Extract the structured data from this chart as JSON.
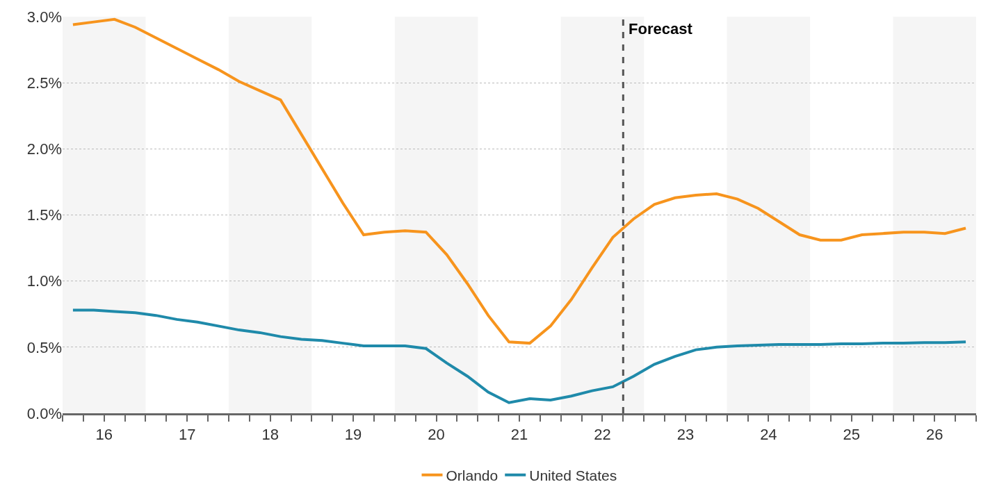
{
  "chart_data": {
    "type": "line",
    "x": [
      15.625,
      15.875,
      16.125,
      16.375,
      16.625,
      16.875,
      17.125,
      17.375,
      17.625,
      17.875,
      18.125,
      18.375,
      18.625,
      18.875,
      19.125,
      19.375,
      19.625,
      19.875,
      20.125,
      20.375,
      20.625,
      20.875,
      21.125,
      21.375,
      21.625,
      21.875,
      22.125,
      22.375,
      22.625,
      22.875,
      23.125,
      23.375,
      23.625,
      23.875,
      24.125,
      24.375,
      24.625,
      24.875,
      25.125,
      25.375,
      25.625,
      25.875,
      26.125,
      26.375
    ],
    "series": [
      {
        "name": "Orlando",
        "color": "#f7941d",
        "values": [
          2.94,
          2.96,
          2.98,
          2.92,
          2.84,
          2.76,
          2.68,
          2.6,
          2.51,
          2.44,
          2.37,
          2.11,
          1.85,
          1.59,
          1.35,
          1.37,
          1.38,
          1.37,
          1.2,
          0.98,
          0.74,
          0.54,
          0.53,
          0.66,
          0.86,
          1.1,
          1.33,
          1.47,
          1.58,
          1.63,
          1.65,
          1.66,
          1.62,
          1.55,
          1.45,
          1.35,
          1.31,
          1.31,
          1.35,
          1.36,
          1.37,
          1.37,
          1.36,
          1.4
        ]
      },
      {
        "name": "United States",
        "color": "#1f8aaa",
        "values": [
          0.78,
          0.78,
          0.77,
          0.76,
          0.74,
          0.71,
          0.69,
          0.66,
          0.63,
          0.61,
          0.58,
          0.56,
          0.55,
          0.53,
          0.51,
          0.51,
          0.51,
          0.49,
          0.38,
          0.28,
          0.16,
          0.08,
          0.11,
          0.1,
          0.13,
          0.17,
          0.2,
          0.28,
          0.37,
          0.43,
          0.48,
          0.5,
          0.51,
          0.515,
          0.52,
          0.52,
          0.52,
          0.525,
          0.525,
          0.53,
          0.53,
          0.535,
          0.535,
          0.54
        ]
      }
    ],
    "xlim": [
      15.5,
      26.5
    ],
    "xticks": [
      {
        "value": 15.5,
        "label": null
      },
      {
        "value": 15.75,
        "label": null
      },
      {
        "value": 16,
        "label": "16"
      },
      {
        "value": 16.25,
        "label": null
      },
      {
        "value": 16.5,
        "label": null
      },
      {
        "value": 16.75,
        "label": null
      },
      {
        "value": 17,
        "label": "17"
      },
      {
        "value": 17.25,
        "label": null
      },
      {
        "value": 17.5,
        "label": null
      },
      {
        "value": 17.75,
        "label": null
      },
      {
        "value": 18,
        "label": "18"
      },
      {
        "value": 18.25,
        "label": null
      },
      {
        "value": 18.5,
        "label": null
      },
      {
        "value": 18.75,
        "label": null
      },
      {
        "value": 19,
        "label": "19"
      },
      {
        "value": 19.25,
        "label": null
      },
      {
        "value": 19.5,
        "label": null
      },
      {
        "value": 19.75,
        "label": null
      },
      {
        "value": 20,
        "label": "20"
      },
      {
        "value": 20.25,
        "label": null
      },
      {
        "value": 20.5,
        "label": null
      },
      {
        "value": 20.75,
        "label": null
      },
      {
        "value": 21,
        "label": "21"
      },
      {
        "value": 21.25,
        "label": null
      },
      {
        "value": 21.5,
        "label": null
      },
      {
        "value": 21.75,
        "label": null
      },
      {
        "value": 22,
        "label": "22"
      },
      {
        "value": 22.25,
        "label": null
      },
      {
        "value": 22.5,
        "label": null
      },
      {
        "value": 22.75,
        "label": null
      },
      {
        "value": 23,
        "label": "23"
      },
      {
        "value": 23.25,
        "label": null
      },
      {
        "value": 23.5,
        "label": null
      },
      {
        "value": 23.75,
        "label": null
      },
      {
        "value": 24,
        "label": "24"
      },
      {
        "value": 24.25,
        "label": null
      },
      {
        "value": 24.5,
        "label": null
      },
      {
        "value": 24.75,
        "label": null
      },
      {
        "value": 25,
        "label": "25"
      },
      {
        "value": 25.25,
        "label": null
      },
      {
        "value": 25.5,
        "label": null
      },
      {
        "value": 25.75,
        "label": null
      },
      {
        "value": 26,
        "label": "26"
      },
      {
        "value": 26.25,
        "label": null
      },
      {
        "value": 26.5,
        "label": null
      }
    ],
    "ylim": [
      0,
      3
    ],
    "yticks": [
      {
        "value": 0,
        "label": "0.0%"
      },
      {
        "value": 0.5,
        "label": "0.5%"
      },
      {
        "value": 1,
        "label": "1.0%"
      },
      {
        "value": 1.5,
        "label": "1.5%"
      },
      {
        "value": 2,
        "label": "2.0%"
      },
      {
        "value": 2.5,
        "label": "2.5%"
      },
      {
        "value": 3,
        "label": "3.0%"
      }
    ],
    "bands": [
      {
        "axis": "x",
        "from": 15.5,
        "to": 16.5,
        "label": null,
        "color": "#f5f5f5"
      },
      {
        "axis": "x",
        "from": 17.5,
        "to": 18.5,
        "label": null,
        "color": "#f5f5f5"
      },
      {
        "axis": "x",
        "from": 19.5,
        "to": 20.5,
        "label": null,
        "color": "#f5f5f5"
      },
      {
        "axis": "x",
        "from": 21.5,
        "to": 22.5,
        "label": null,
        "color": "#f5f5f5"
      },
      {
        "axis": "x",
        "from": 23.5,
        "to": 24.5,
        "label": null,
        "color": "#f5f5f5"
      },
      {
        "axis": "x",
        "from": 25.5,
        "to": 26.5,
        "label": null,
        "color": "#f5f5f5"
      }
    ],
    "ref_lines": [
      {
        "axis": "x",
        "value": 22.25,
        "label": "Forecast",
        "color": "#555555",
        "line_style": "dashed"
      }
    ],
    "grid": "y",
    "legend": "bottom",
    "line_style": "solid",
    "marker": "none"
  }
}
